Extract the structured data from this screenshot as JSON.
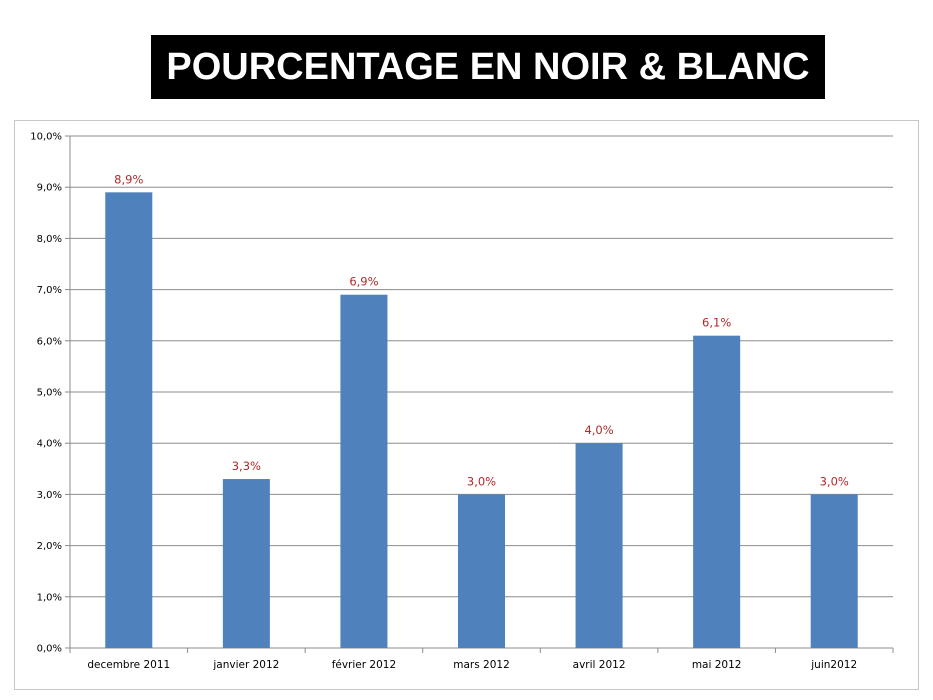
{
  "title": "POURCENTAGE EN NOIR & BLANC",
  "chart_data": {
    "type": "bar",
    "categories": [
      "decembre 2011",
      "janvier 2012",
      "février 2012",
      "mars 2012",
      "avril 2012",
      "mai 2012",
      "juin2012"
    ],
    "values": [
      8.9,
      3.3,
      6.9,
      3.0,
      4.0,
      6.1,
      3.0
    ],
    "data_labels": [
      "8,9%",
      "3,3%",
      "6,9%",
      "3,0%",
      "4,0%",
      "6,1%",
      "3,0%"
    ],
    "y_ticks": [
      "0,0%",
      "1,0%",
      "2,0%",
      "3,0%",
      "4,0%",
      "5,0%",
      "6,0%",
      "7,0%",
      "8,0%",
      "9,0%",
      "10,0%"
    ],
    "ylim": [
      0,
      10
    ],
    "grid": true,
    "legend": "none",
    "bar_color": "#4f81bd",
    "label_color": "#b02a2a"
  }
}
